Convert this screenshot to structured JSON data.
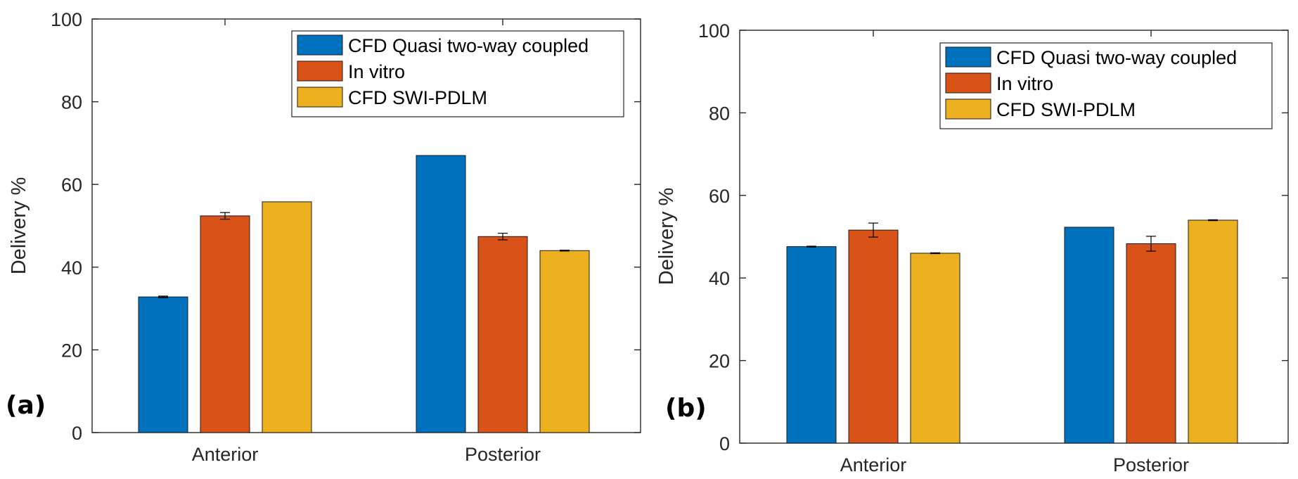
{
  "chart_data": [
    {
      "panel_label": "(a)",
      "type": "bar",
      "categories": [
        "Anterior",
        "Posterior"
      ],
      "series": [
        {
          "name": "CFD Quasi two-way coupled",
          "values": [
            32.8,
            67.0
          ],
          "errors": [
            0.2,
            0.0
          ],
          "color": "#0072BD"
        },
        {
          "name": "In vitro",
          "values": [
            52.4,
            47.4
          ],
          "errors": [
            0.8,
            0.8
          ],
          "color": "#D95319"
        },
        {
          "name": "CFD SWI-PDLM",
          "values": [
            55.8,
            44.0
          ],
          "errors": [
            0.0,
            0.1
          ],
          "color": "#EDB120"
        }
      ],
      "xlabel": "",
      "ylabel": "Delivery %",
      "ylim": [
        0,
        100
      ],
      "yticks": [
        0,
        20,
        40,
        60,
        80,
        100
      ],
      "grid": false,
      "legend_position": "top-right"
    },
    {
      "panel_label": "(b)",
      "type": "bar",
      "categories": [
        "Anterior",
        "Posterior"
      ],
      "series": [
        {
          "name": "CFD Quasi two-way coupled",
          "values": [
            47.6,
            52.3
          ],
          "errors": [
            0.1,
            0.0
          ],
          "color": "#0072BD"
        },
        {
          "name": "In vitro",
          "values": [
            51.6,
            48.3
          ],
          "errors": [
            1.7,
            1.8
          ],
          "color": "#D95319"
        },
        {
          "name": "CFD SWI-PDLM",
          "values": [
            46.0,
            54.0
          ],
          "errors": [
            0.1,
            0.1
          ],
          "color": "#EDB120"
        }
      ],
      "xlabel": "",
      "ylabel": "Delivery %",
      "ylim": [
        0,
        100
      ],
      "yticks": [
        0,
        20,
        40,
        60,
        80,
        100
      ],
      "grid": false,
      "legend_position": "top-right"
    }
  ]
}
